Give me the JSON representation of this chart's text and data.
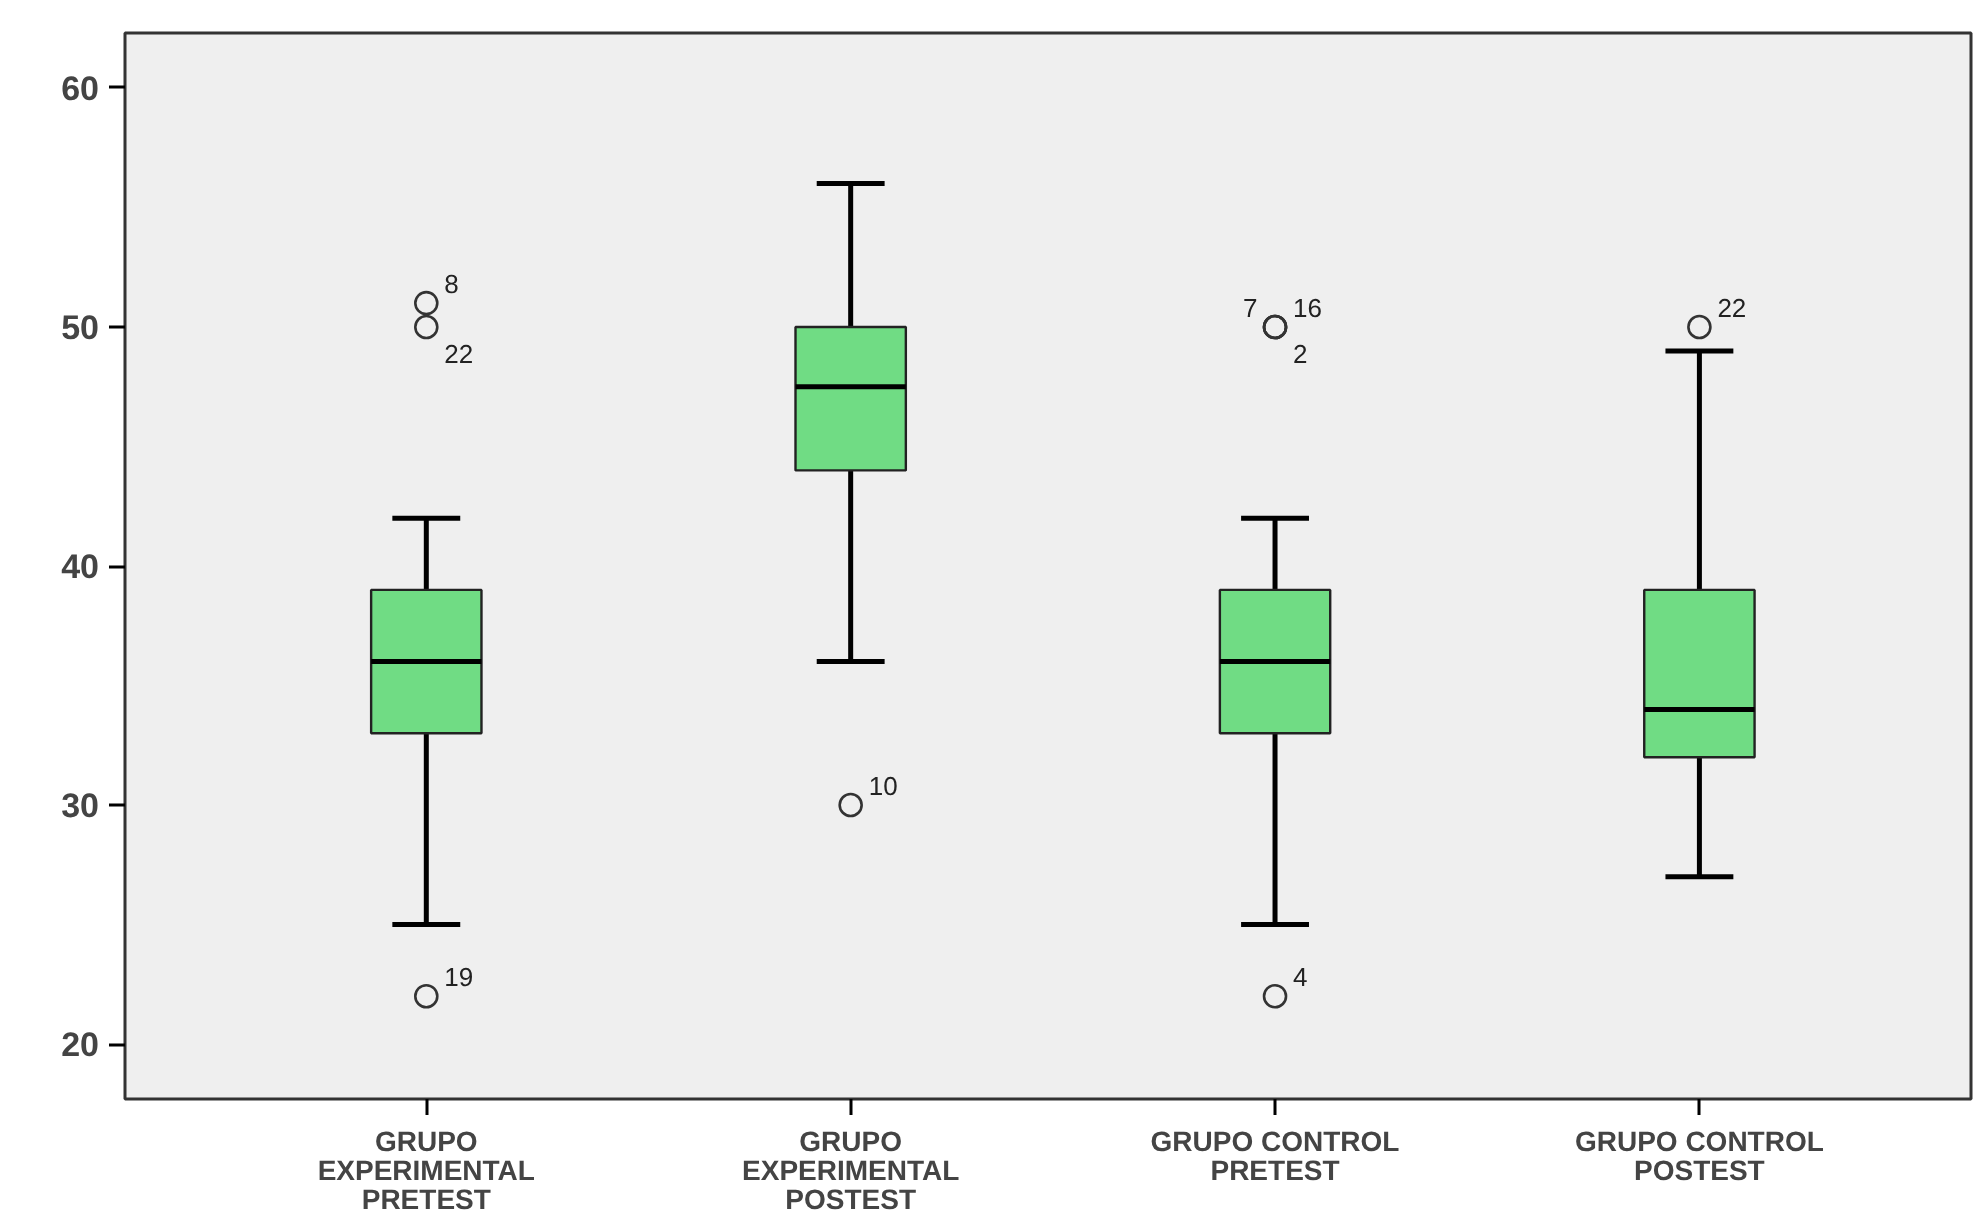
{
  "chart_data": {
    "type": "box",
    "categories": [
      "GRUPO\nEXPERIMENTAL\nPRETEST",
      "GRUPO\nEXPERIMENTAL\nPOSTEST",
      "GRUPO CONTROL\nPRETEST",
      "GRUPO CONTROL\nPOSTEST"
    ],
    "color": "#70dc84",
    "boxes": [
      {
        "low": 25,
        "q1": 33,
        "median": 36,
        "q3": 39,
        "high": 42,
        "outliers": [
          22,
          51,
          50
        ]
      },
      {
        "low": 36,
        "q1": 44,
        "median": 47.5,
        "q3": 50,
        "high": 56,
        "outliers": [
          30
        ]
      },
      {
        "low": 25,
        "q1": 33,
        "median": 36,
        "q3": 39,
        "high": 42,
        "outliers": [
          22,
          50,
          50,
          50
        ]
      },
      {
        "low": 27,
        "q1": 32,
        "median": 34,
        "q3": 39,
        "high": 49,
        "outliers": [
          50
        ]
      }
    ],
    "ylim": [
      17.7,
      62.3
    ],
    "yticks": [
      20,
      30,
      40,
      50,
      60
    ],
    "grid": false,
    "annotations": [
      "19",
      "8",
      "22",
      "10",
      "4",
      "16",
      "2",
      "7",
      "22"
    ]
  }
}
